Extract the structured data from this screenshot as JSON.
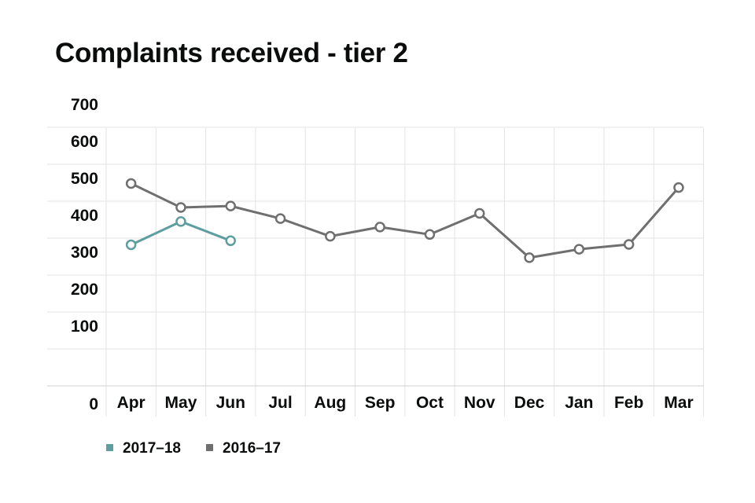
{
  "chart_data": {
    "type": "line",
    "title": "Complaints received - tier 2",
    "xlabel": "",
    "ylabel": "",
    "categories": [
      "Apr",
      "May",
      "Jun",
      "Jul",
      "Aug",
      "Sep",
      "Oct",
      "Nov",
      "Dec",
      "Jan",
      "Feb",
      "Mar"
    ],
    "ylim": [
      0,
      700
    ],
    "yticks": [
      0,
      100,
      200,
      300,
      400,
      500,
      600,
      700
    ],
    "grid": true,
    "legend_position": "bottom-left",
    "series": [
      {
        "name": "2017–18",
        "color": "#5f9ea0",
        "values": [
          382,
          445,
          393,
          null,
          null,
          null,
          null,
          null,
          null,
          null,
          null,
          null
        ]
      },
      {
        "name": "2016–17",
        "color": "#6f6f6f",
        "values": [
          548,
          483,
          487,
          453,
          405,
          430,
          410,
          467,
          347,
          370,
          383,
          537
        ]
      }
    ]
  }
}
